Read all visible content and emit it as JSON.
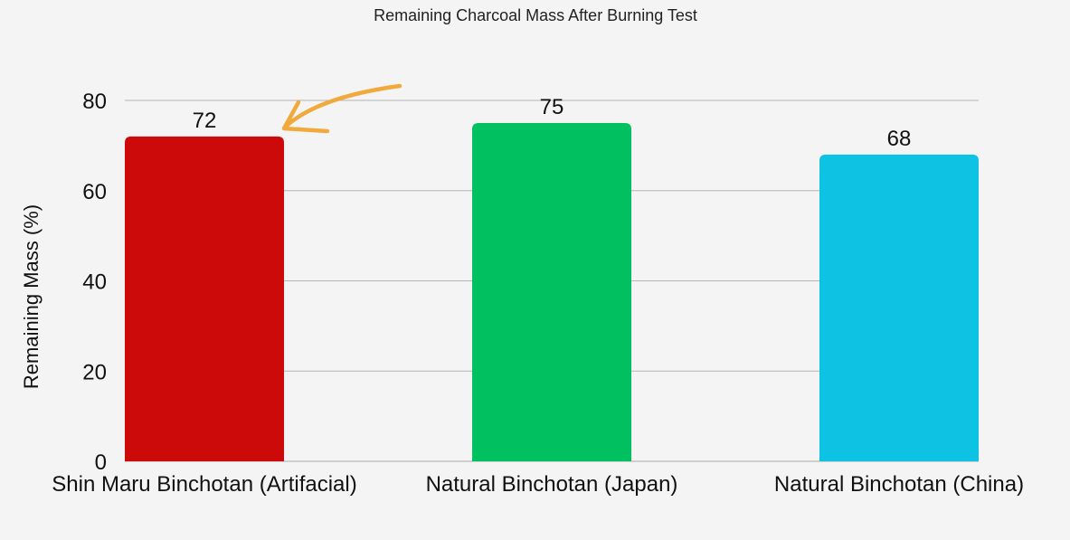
{
  "chart_data": {
    "type": "bar",
    "title": "Remaining Charcoal Mass After Burning Test",
    "xlabel": "",
    "ylabel": "Remaining Mass (%)",
    "categories": [
      "Shin Maru Binchotan (Artifacial)",
      "Natural Binchotan (Japan)",
      "Natural Binchotan (China)"
    ],
    "values": [
      72,
      75,
      68
    ],
    "colors": [
      "#cc0a0a",
      "#01c060",
      "#0dc2e2"
    ],
    "ylim": [
      0,
      80
    ],
    "yticks": [
      0,
      20,
      40,
      60,
      80
    ],
    "grid": true,
    "data_labels": true,
    "annotation": {
      "type": "arrow",
      "points_to_category": "Shin Maru Binchotan (Artifacial)",
      "color": "#f2a93b"
    }
  }
}
